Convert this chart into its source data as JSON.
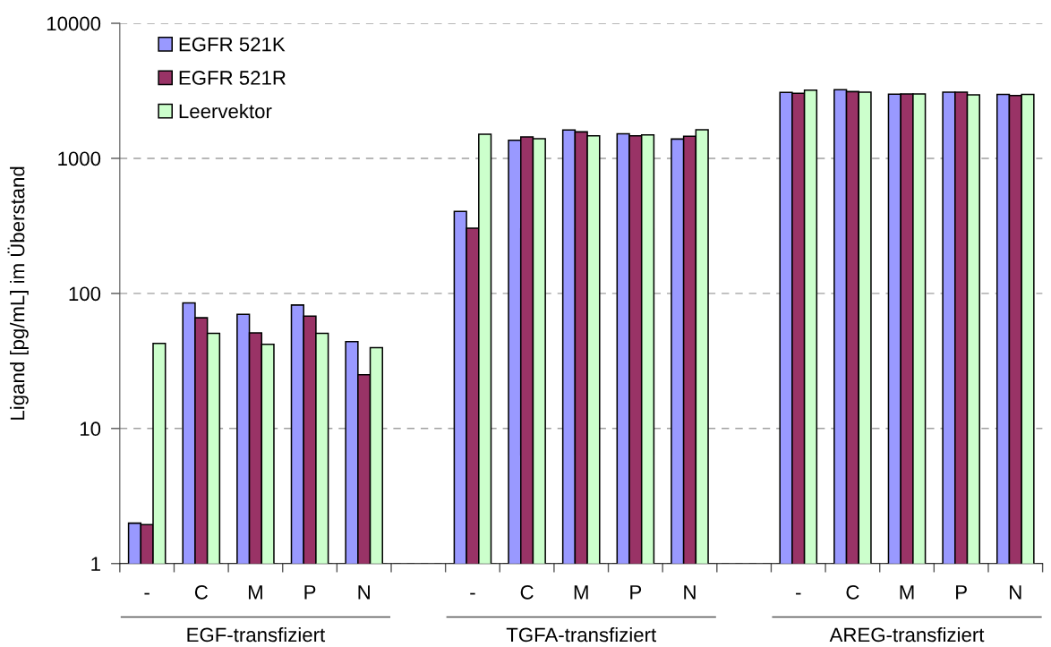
{
  "chart_data": {
    "type": "bar",
    "ylabel": "Ligand [pg/mL] im Überstand",
    "categories": [
      "-",
      "C",
      "M",
      "P",
      "N",
      null,
      "-",
      "C",
      "M",
      "P",
      "N",
      null,
      "-",
      "C",
      "M",
      "P",
      "N"
    ],
    "series": [
      {
        "name": "EGFR 521K",
        "color": "#9999ff",
        "values": [
          1.99,
          85,
          70,
          82,
          44,
          null,
          405,
          1360,
          1620,
          1520,
          1390,
          null,
          3080,
          3220,
          2990,
          3090,
          2970
        ]
      },
      {
        "name": "EGFR 521R",
        "color": "#993366",
        "values": [
          1.94,
          66,
          51,
          68,
          25,
          null,
          304,
          1440,
          1570,
          1470,
          1460,
          null,
          3030,
          3120,
          3000,
          3090,
          2920
        ]
      },
      {
        "name": "Leervektor",
        "color": "#ccffcc",
        "values": [
          42.6,
          50.6,
          42,
          50.6,
          39.6,
          null,
          1510,
          1400,
          1470,
          1490,
          1630,
          null,
          3200,
          3090,
          3000,
          2950,
          2970
        ]
      }
    ],
    "log": "y",
    "ylim": [
      1,
      10000
    ],
    "yticks": [
      1,
      10,
      100,
      1000,
      10000
    ],
    "grid": "y",
    "legend": "top left",
    "annotations": [
      "EGF-transfiziert",
      "TGFA-transfiziert",
      "AREG-transfiziert"
    ]
  }
}
